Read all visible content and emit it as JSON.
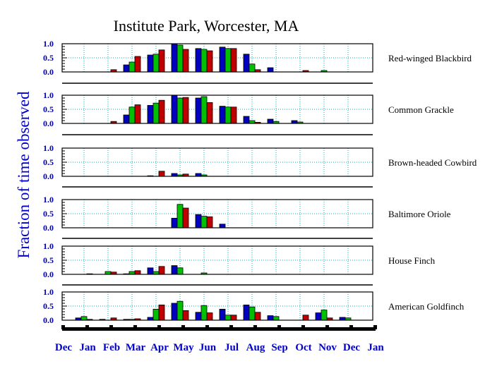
{
  "chart_data": {
    "type": "bar",
    "title": "Institute Park, Worcester, MA",
    "ylabel": "Fraction of time observed",
    "xlabel": "",
    "axis_months": [
      "Dec",
      "Jan",
      "Feb",
      "Mar",
      "Apr",
      "May",
      "Jun",
      "Jul",
      "Aug",
      "Sep",
      "Oct",
      "Nov",
      "Dec",
      "Jan"
    ],
    "categories": [
      "Jan",
      "Feb",
      "Mar",
      "Apr",
      "May",
      "Jun",
      "Jul",
      "Aug",
      "Sep",
      "Oct",
      "Nov",
      "Dec"
    ],
    "ylim": [
      0,
      1
    ],
    "yticks": [
      "0.0",
      "0.5",
      "1.0"
    ],
    "grid": true,
    "series_colors": [
      "#0000c0",
      "#00c000",
      "#c00000"
    ],
    "grid_color": "#00b0b0",
    "panels": [
      {
        "label": "Red-winged Blackbird",
        "series": [
          {
            "values": [
              0,
              0,
              0.25,
              0.6,
              1.0,
              0.83,
              0.88,
              0.63,
              0.15,
              0,
              0,
              0
            ]
          },
          {
            "values": [
              0,
              0,
              0.35,
              0.63,
              0.95,
              0.8,
              0.83,
              0.28,
              0,
              0,
              0.05,
              0
            ]
          },
          {
            "values": [
              0,
              0.08,
              0.55,
              0.78,
              0.8,
              0.75,
              0.83,
              0.08,
              0,
              0.05,
              0,
              0
            ]
          }
        ]
      },
      {
        "label": "Common Grackle",
        "series": [
          {
            "values": [
              0,
              0,
              0.3,
              0.64,
              1.0,
              0.9,
              0.61,
              0.25,
              0.15,
              0.1,
              0,
              0
            ]
          },
          {
            "values": [
              0,
              0,
              0.58,
              0.72,
              0.9,
              0.95,
              0.58,
              0.1,
              0.07,
              0.05,
              0,
              0
            ]
          },
          {
            "values": [
              0,
              0.07,
              0.66,
              0.82,
              0.92,
              0.74,
              0.58,
              0.04,
              0,
              0,
              0,
              0
            ]
          }
        ]
      },
      {
        "label": "Brown-headed Cowbird",
        "series": [
          {
            "values": [
              0,
              0,
              0,
              0.02,
              0.1,
              0.1,
              0,
              0,
              0,
              0,
              0,
              0
            ]
          },
          {
            "values": [
              0,
              0,
              0,
              0,
              0.05,
              0.05,
              0,
              0,
              0,
              0,
              0,
              0
            ]
          },
          {
            "values": [
              0,
              0,
              0,
              0.18,
              0.08,
              0,
              0,
              0,
              0,
              0,
              0,
              0
            ]
          }
        ]
      },
      {
        "label": "Baltimore Oriole",
        "series": [
          {
            "values": [
              0,
              0,
              0,
              0,
              0.34,
              0.47,
              0.13,
              0,
              0,
              0,
              0,
              0
            ]
          },
          {
            "values": [
              0,
              0,
              0,
              0,
              0.83,
              0.41,
              0,
              0,
              0,
              0,
              0,
              0
            ]
          },
          {
            "values": [
              0,
              0,
              0,
              0,
              0.7,
              0.39,
              0,
              0,
              0,
              0,
              0,
              0
            ]
          }
        ]
      },
      {
        "label": "House Finch",
        "series": [
          {
            "values": [
              0,
              0,
              0.02,
              0.23,
              0.31,
              0,
              0,
              0,
              0,
              0,
              0,
              0
            ]
          },
          {
            "values": [
              0,
              0.1,
              0.1,
              0.1,
              0.23,
              0.05,
              0,
              0,
              0,
              0,
              0,
              0
            ]
          },
          {
            "values": [
              0.02,
              0.08,
              0.13,
              0.28,
              0,
              0,
              0,
              0,
              0,
              0,
              0,
              0
            ]
          }
        ]
      },
      {
        "label": "American Goldfinch",
        "series": [
          {
            "values": [
              0.08,
              0.03,
              0.03,
              0.1,
              0.6,
              0.28,
              0.39,
              0.54,
              0.16,
              0,
              0.26,
              0.1
            ]
          },
          {
            "values": [
              0.13,
              0,
              0.03,
              0.39,
              0.67,
              0.52,
              0.18,
              0.47,
              0.13,
              0,
              0.36,
              0.08
            ]
          },
          {
            "values": [
              0.03,
              0.08,
              0.05,
              0.54,
              0.34,
              0.26,
              0.18,
              0.28,
              0,
              0.18,
              0.08,
              0
            ]
          }
        ]
      }
    ]
  }
}
